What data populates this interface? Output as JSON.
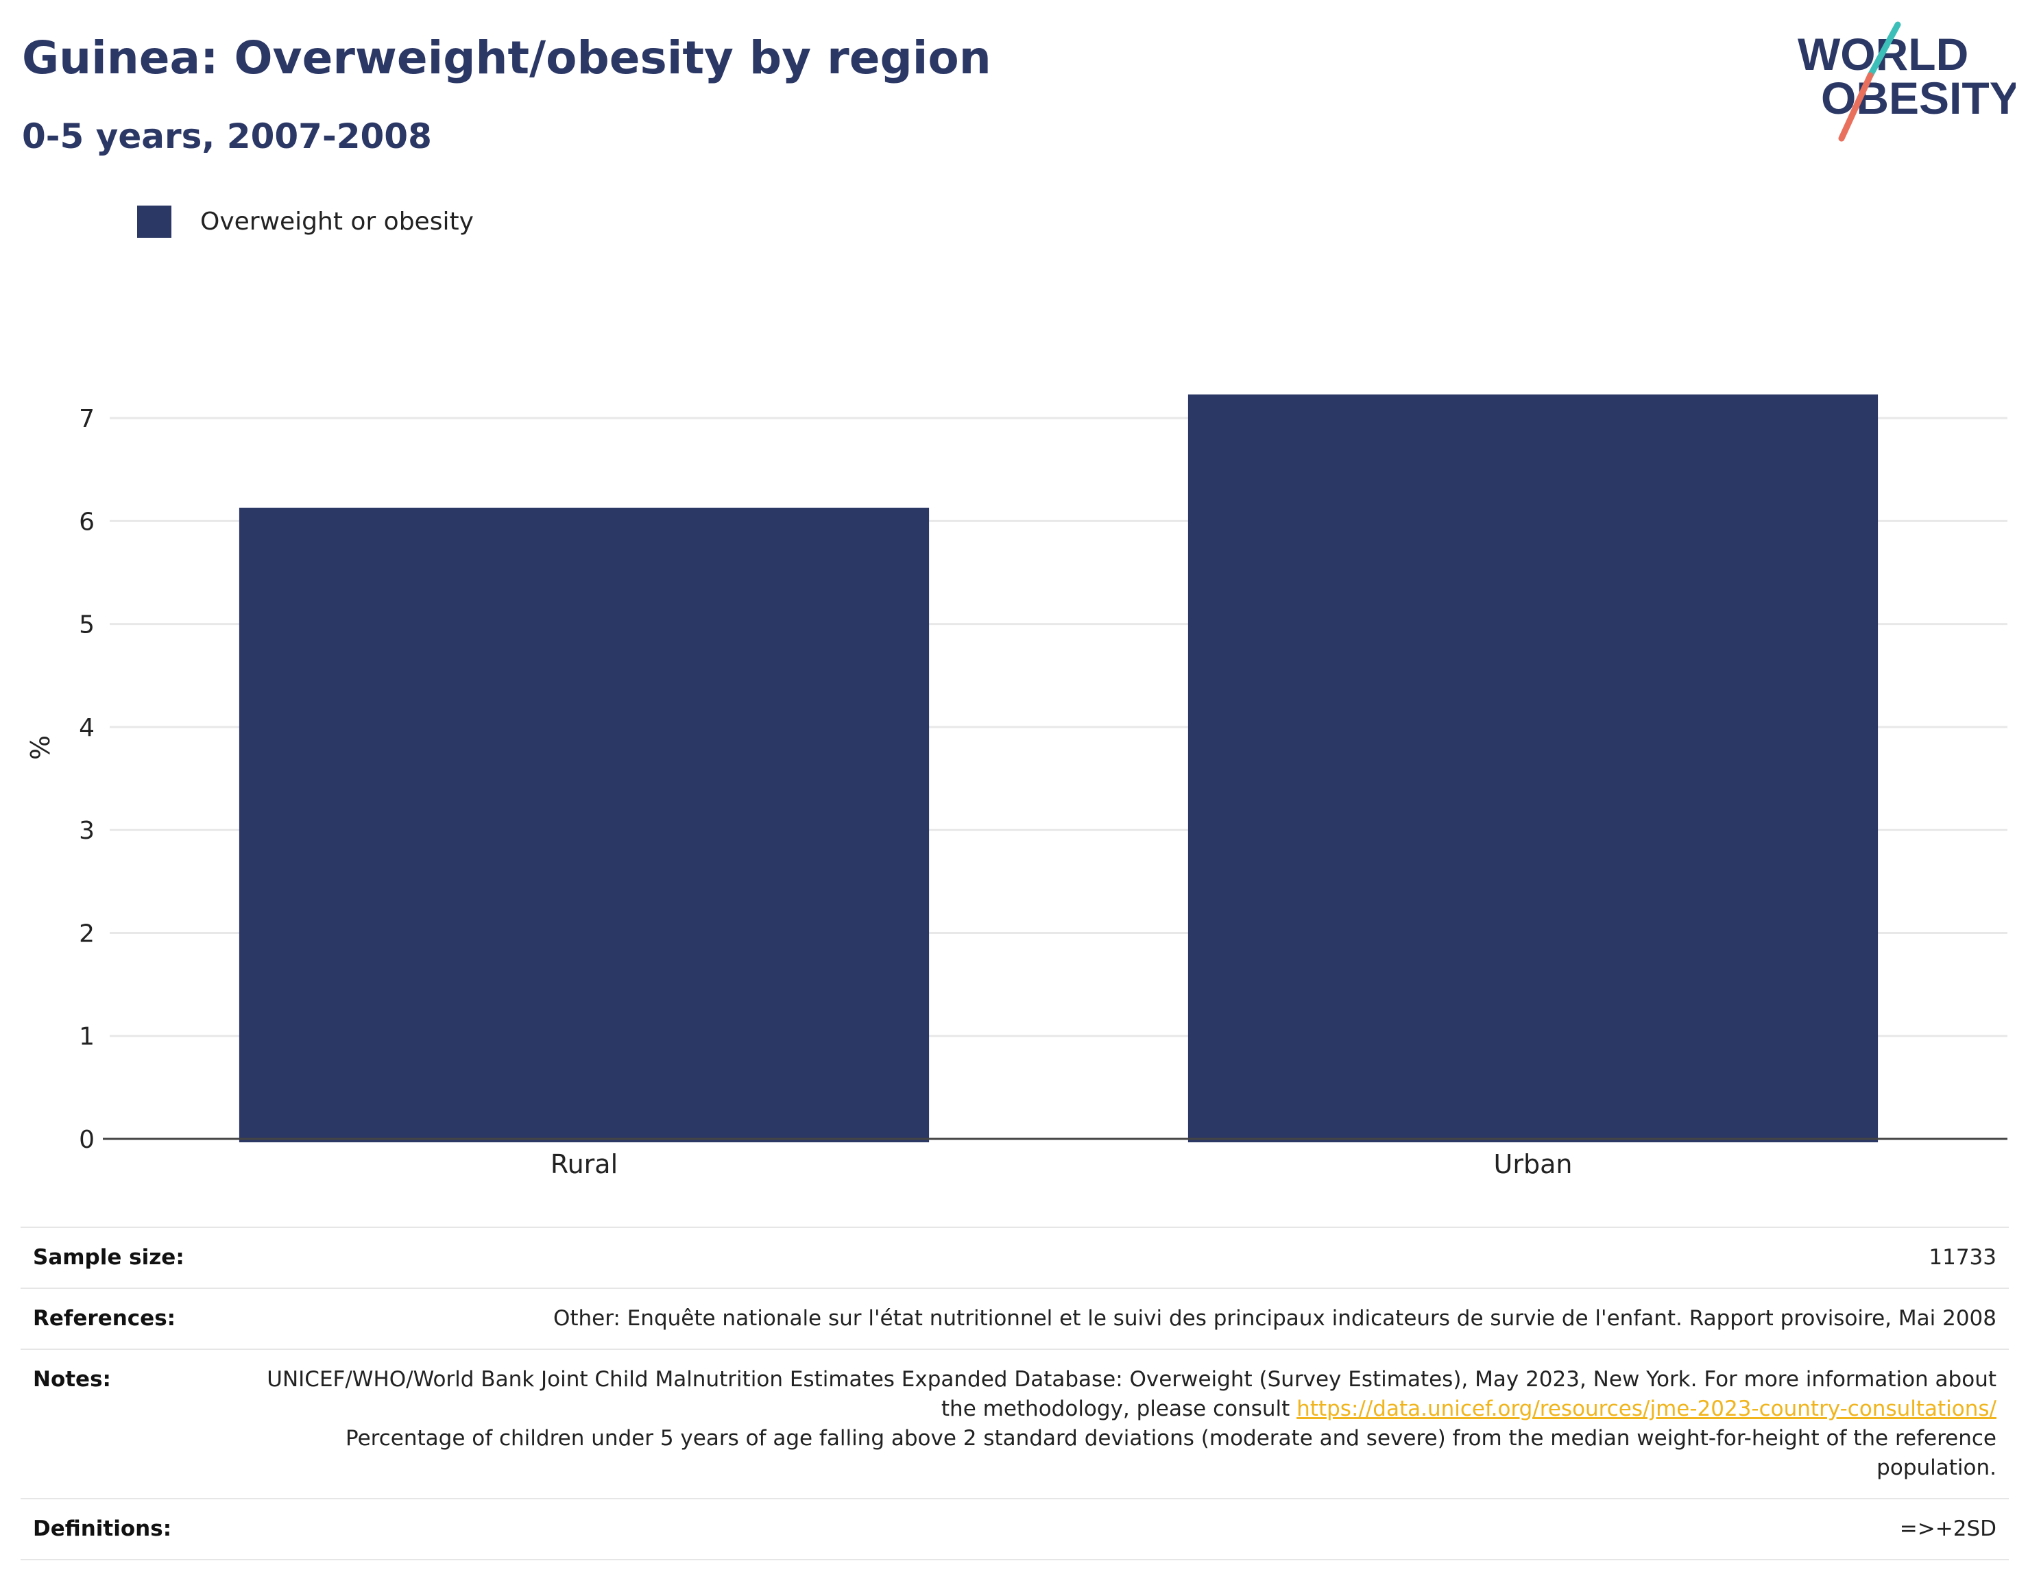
{
  "header": {
    "title": "Guinea: Overweight/obesity by region",
    "subtitle": "0-5 years, 2007-2008"
  },
  "logo": {
    "line1": "WORLD",
    "line2": "OBESITY",
    "colors": {
      "text": "#2b3765",
      "slash_teal": "#3cbfb8",
      "slash_red": "#e8705d"
    }
  },
  "chart_data": {
    "type": "bar",
    "categories": [
      "Rural",
      "Urban"
    ],
    "series": [
      {
        "name": "Overweight or obesity",
        "values": [
          6.13,
          7.23
        ],
        "color": "#2b3765"
      }
    ],
    "title": "Guinea: Overweight/obesity by region",
    "subtitle": "0-5 years, 2007-2008",
    "xlabel": "",
    "ylabel": "%",
    "ylim": [
      0,
      7.6
    ],
    "yticks": [
      0,
      1,
      2,
      3,
      4,
      5,
      6,
      7
    ],
    "grid": true,
    "legend": "top-left"
  },
  "meta": {
    "sample_size": {
      "label": "Sample size:",
      "value": "11733"
    },
    "references": {
      "label": "References:",
      "value": "Other: Enquête nationale sur l'état nutritionnel et le suivi des principaux indicateurs de survie de l'enfant. Rapport provisoire, Mai 2008"
    },
    "notes": {
      "label": "Notes:",
      "text1": "UNICEF/WHO/World Bank Joint Child Malnutrition Estimates Expanded Database: Overweight (Survey Estimates), May 2023, New York. For more information about the methodology, please consult ",
      "link": "https://data.unicef.org/resources/jme-2023-country-consultations/",
      "text2": "Percentage of children under 5 years of age falling above 2 standard deviations (moderate and severe) from the median weight-for-height of the reference population."
    },
    "definitions": {
      "label": "Definitions:",
      "value": "=>+2SD"
    }
  }
}
